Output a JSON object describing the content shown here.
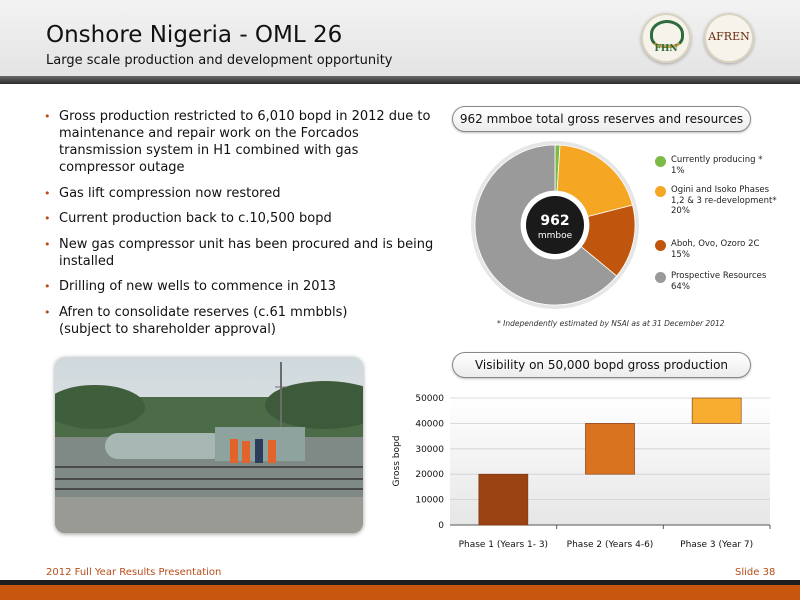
{
  "header": {
    "title": "Onshore Nigeria - OML 26",
    "subtitle": "Large scale production and development opportunity"
  },
  "logos": {
    "fhn": "FHN",
    "afren": "AFREN"
  },
  "bullets": [
    "Gross production restricted to 6,010 bopd in 2012 due to maintenance and repair work on the Forcados transmission system in H1 combined with gas compressor outage",
    "Gas lift compression now restored",
    "Current production back to c.10,500 bopd",
    "New gas compressor unit has been procured and is being installed",
    "Drilling of new wells to commence in 2013",
    "Afren to consolidate reserves (c.61 mmbbls) (subject to shareholder approval)"
  ],
  "colors": {
    "accent": "#b84c16",
    "footer": "#c9560f"
  },
  "chart_data": [
    {
      "type": "pie",
      "title": "962 mmboe total gross reserves and resources",
      "center_value": "962",
      "center_unit": "mmboe",
      "slices": [
        {
          "label": "Currently producing *",
          "value": 1,
          "display": "1%",
          "color": "#7dbb47"
        },
        {
          "label": "Ogini and Isoko Phases 1,2 & 3 re-development*",
          "value": 20,
          "display": "20%",
          "color": "#f5a623"
        },
        {
          "label": "Aboh, Ovo, Ozoro 2C",
          "value": 15,
          "display": "15%",
          "color": "#c0560e"
        },
        {
          "label": "Prospective Resources",
          "value": 64,
          "display": "64%",
          "color": "#9a9a9a"
        }
      ],
      "footnote": "* Independently estimated by NSAI as at 31 December 2012"
    },
    {
      "type": "bar",
      "subtype": "floating",
      "title": "Visibility on 50,000 bopd gross production",
      "ylabel": "Gross bopd",
      "categories": [
        "Phase 1 (Years 1- 3)",
        "Phase 2 (Years 4-6)",
        "Phase 3 (Year 7)"
      ],
      "ranges": [
        [
          0,
          20000
        ],
        [
          20000,
          40000
        ],
        [
          40000,
          50000
        ]
      ],
      "colors": [
        "#9a4212",
        "#d9731f",
        "#f7ad30"
      ],
      "ylim": [
        0,
        50000
      ],
      "yticks": [
        "0",
        "10000",
        "20000",
        "30000",
        "40000",
        "50000"
      ]
    }
  ],
  "footer": {
    "left": "2012 Full Year Results Presentation",
    "right": "Slide 38"
  }
}
